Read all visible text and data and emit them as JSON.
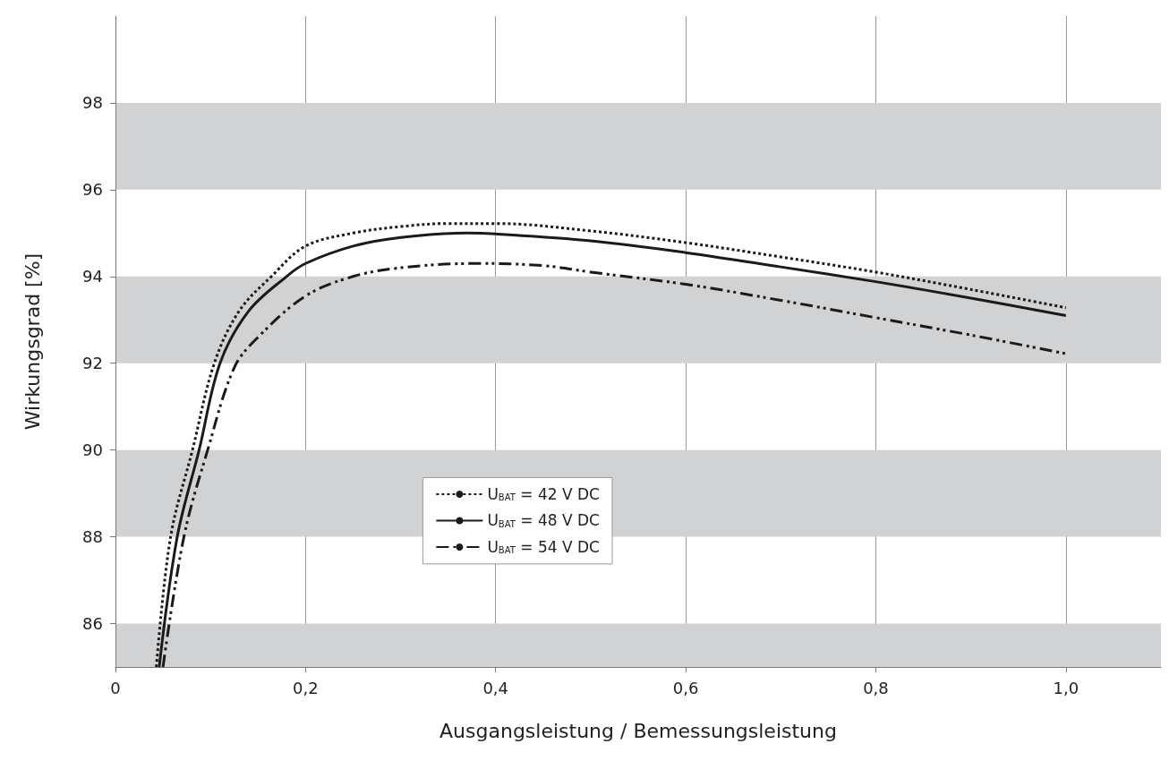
{
  "chart_data": {
    "type": "line",
    "xlabel": "Ausgangsleistung / Bemessungsleistung",
    "ylabel": "Wirkungsgrad [%]",
    "xlim": [
      0,
      1.1
    ],
    "xticks": [
      0,
      {
        "value": 0.2,
        "label": "0,2"
      },
      {
        "value": 0.4,
        "label": "0,4"
      },
      {
        "value": 0.6,
        "label": "0,6"
      },
      {
        "value": 0.8,
        "label": "0,8"
      },
      {
        "value": 1.0,
        "label": "1,0"
      }
    ],
    "ylim": [
      85,
      100
    ],
    "yticks": [
      86,
      88,
      90,
      92,
      94,
      96,
      98
    ],
    "grid": "x",
    "legend": "lower center",
    "marker": "none",
    "bands": [
      {
        "axis": "y",
        "from": 85,
        "to": 86,
        "color": "#d1d2d4"
      },
      {
        "axis": "y",
        "from": 88,
        "to": 90,
        "color": "#d1d2d4"
      },
      {
        "axis": "y",
        "from": 92,
        "to": 94,
        "color": "#d1d2d4"
      },
      {
        "axis": "y",
        "from": 96,
        "to": 98,
        "color": "#d1d2d4"
      }
    ],
    "series": [
      {
        "name": "U$_{BAT}$ = 42 V DC",
        "color": "#1a1a1a",
        "line_style": "dotted",
        "x": [
          0.043,
          0.058,
          0.081,
          0.104,
          0.13,
          0.164,
          0.2,
          0.25,
          0.3,
          0.35,
          0.4,
          0.5,
          0.6,
          0.7,
          0.8,
          0.9,
          1.0
        ],
        "values": [
          85,
          88,
          90,
          92,
          93.2,
          94,
          94.7,
          95.0,
          95.15,
          95.22,
          95.22,
          95.05,
          94.78,
          94.45,
          94.1,
          93.7,
          93.28
        ]
      },
      {
        "name": "U$_{BAT}$ = 48 V DC",
        "color": "#1a1a1a",
        "line_style": "solid",
        "x": [
          0.046,
          0.065,
          0.088,
          0.11,
          0.14,
          0.18,
          0.2,
          0.25,
          0.3,
          0.37,
          0.4,
          0.5,
          0.6,
          0.7,
          0.8,
          0.9,
          1.0
        ],
        "values": [
          85,
          88,
          90,
          92,
          93.2,
          94,
          94.3,
          94.7,
          94.9,
          95.0,
          94.98,
          94.82,
          94.55,
          94.22,
          93.88,
          93.5,
          93.1
        ]
      },
      {
        "name": "U$_{BAT}$ = 54 V DC",
        "color": "#1a1a1a",
        "line_style": "dashdotdot",
        "x": [
          0.05,
          0.072,
          0.097,
          0.125,
          0.15,
          0.2,
          0.25,
          0.3,
          0.38,
          0.45,
          0.5,
          0.6,
          0.7,
          0.8,
          0.9,
          1.0
        ],
        "values": [
          85,
          88,
          90,
          91.9,
          92.6,
          93.55,
          94.0,
          94.2,
          94.3,
          94.25,
          94.1,
          93.82,
          93.45,
          93.05,
          92.65,
          92.22
        ]
      }
    ]
  }
}
